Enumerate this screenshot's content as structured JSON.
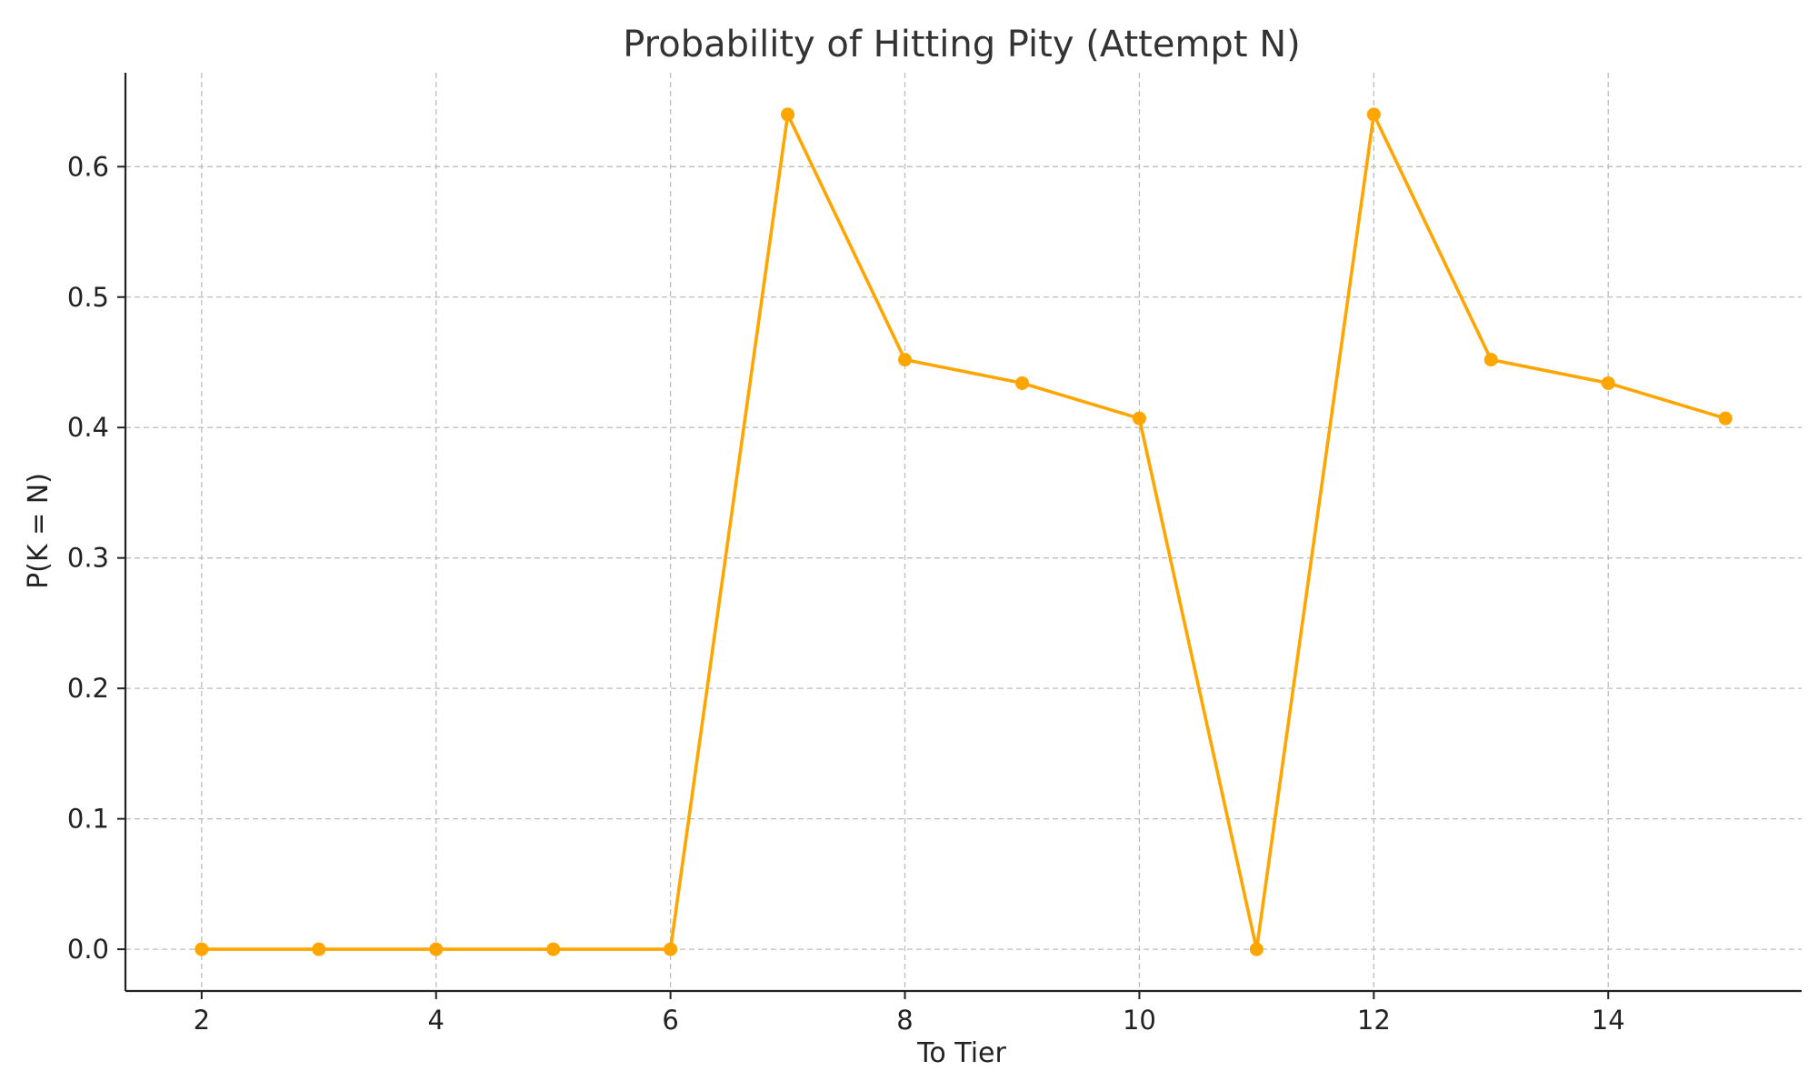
{
  "chart_data": {
    "type": "line",
    "title": "Probability of Hitting Pity (Attempt N)",
    "xlabel": "To Tier",
    "ylabel": "P(K = N)",
    "x": [
      2,
      3,
      4,
      5,
      6,
      7,
      8,
      9,
      10,
      11,
      12,
      13,
      14,
      15
    ],
    "series": [
      {
        "values": [
          0.0,
          0.0,
          0.0,
          0.0,
          0.0,
          0.64,
          0.452,
          0.434,
          0.407,
          0.0,
          0.64,
          0.452,
          0.434,
          0.407
        ],
        "color": "#FFA500",
        "marker": "circle"
      }
    ],
    "xlim": [
      1.35,
      15.65
    ],
    "ylim": [
      -0.032,
      0.672
    ],
    "xticks": [
      2,
      4,
      6,
      8,
      10,
      12,
      14
    ],
    "xtick_labels": [
      "2",
      "4",
      "6",
      "8",
      "10",
      "12",
      "14"
    ],
    "yticks": [
      0.0,
      0.1,
      0.2,
      0.3,
      0.4,
      0.5,
      0.6
    ],
    "ytick_labels": [
      "0.0",
      "0.1",
      "0.2",
      "0.3",
      "0.4",
      "0.5",
      "0.6"
    ],
    "grid": true,
    "legend": "none"
  }
}
